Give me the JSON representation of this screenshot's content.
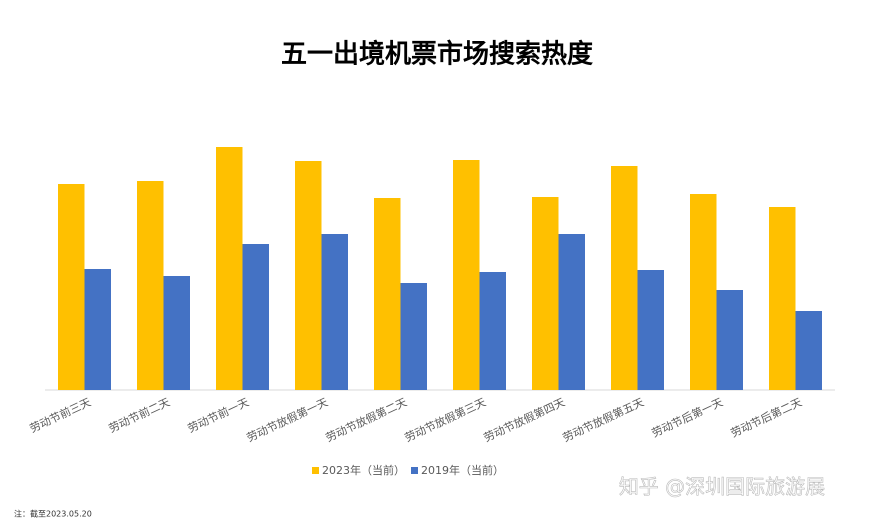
{
  "chart_data": {
    "type": "bar",
    "title": "五一出境机票市场搜索热度",
    "categories": [
      "劳动节前三天",
      "劳动节前二天",
      "劳动节前一天",
      "劳动节放假第一天",
      "劳动节放假第二天",
      "劳动节放假第三天",
      "劳动节放假第四天",
      "劳动节放假第五天",
      "劳动节后第一天",
      "劳动节后第二天"
    ],
    "series": [
      {
        "name": "2023年（当前）",
        "color": "#FFC000",
        "values": [
          206,
          209,
          243,
          229,
          192,
          230,
          193,
          224,
          196,
          183
        ]
      },
      {
        "name": "2019年（当前）",
        "color": "#4472C4",
        "values": [
          121,
          114,
          146,
          156,
          107,
          118,
          156,
          120,
          100,
          79
        ]
      }
    ],
    "ylim": [
      0,
      260
    ],
    "grid": false,
    "legend": "bottom",
    "note": "注：截至2023.05.20",
    "watermark": "知乎 @深圳国际旅游展"
  }
}
